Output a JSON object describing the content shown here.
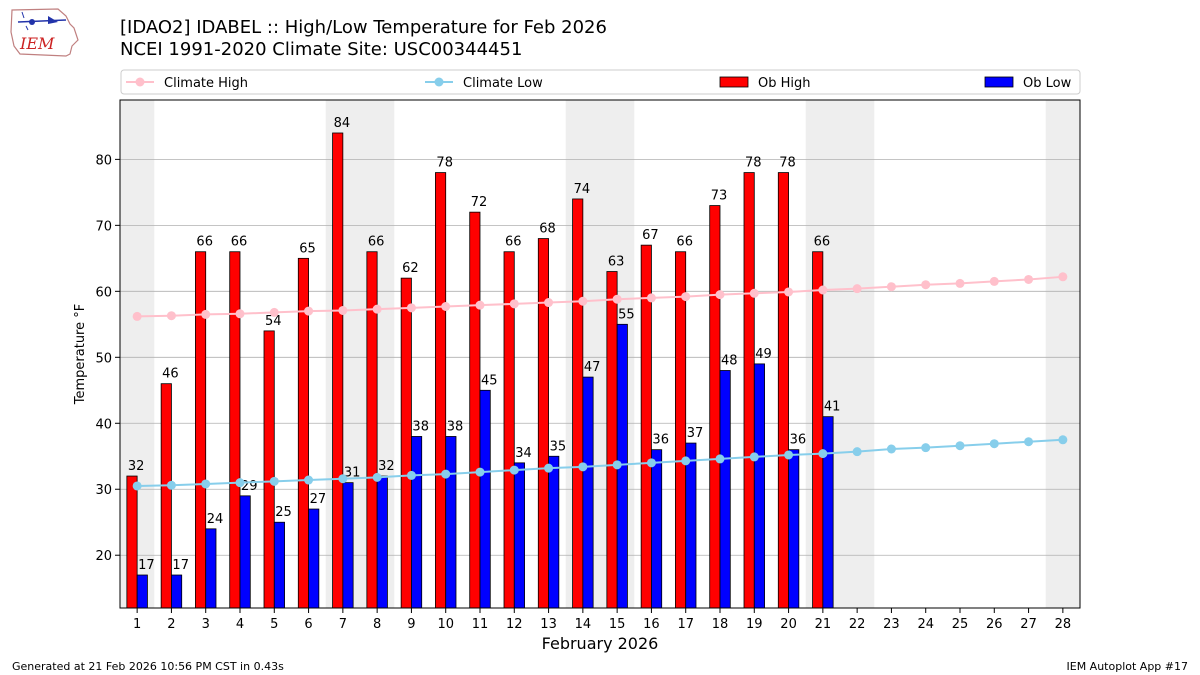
{
  "header": {
    "title_line1": "[IDAO2] IDABEL :: High/Low Temperature for Feb 2026",
    "title_line2": "NCEI 1991-2020 Climate Site: USC00344451",
    "logo_text": "IEM"
  },
  "footer": {
    "generated": "Generated at 21 Feb 2026 10:56 PM CST in 0.43s",
    "app": "IEM Autoplot App #17"
  },
  "colors": {
    "ob_high": "#ff0000",
    "ob_low": "#0000ff",
    "climate_high": "#ffc0cb",
    "climate_low": "#87ceeb",
    "weekend_shade": "#eeeeee",
    "grid": "#b0b0b0"
  },
  "chart_data": {
    "type": "bar",
    "title": "[IDAO2] IDABEL :: High/Low Temperature for Feb 2026",
    "xlabel": "February 2026",
    "ylabel": "Temperature °F",
    "ylim": [
      12,
      89
    ],
    "yticks": [
      20,
      30,
      40,
      50,
      60,
      70,
      80
    ],
    "grid": true,
    "legend_position": "top",
    "categories": [
      "1",
      "2",
      "3",
      "4",
      "5",
      "6",
      "7",
      "8",
      "9",
      "10",
      "11",
      "12",
      "13",
      "14",
      "15",
      "16",
      "17",
      "18",
      "19",
      "20",
      "21",
      "22",
      "23",
      "24",
      "25",
      "26",
      "27",
      "28"
    ],
    "weekend_days": [
      1,
      7,
      8,
      14,
      15,
      21,
      22,
      28
    ],
    "series": [
      {
        "name": "Ob High",
        "kind": "bar",
        "values": [
          32,
          46,
          66,
          66,
          54,
          65,
          84,
          66,
          62,
          78,
          72,
          66,
          68,
          74,
          63,
          67,
          66,
          73,
          78,
          78,
          66,
          null,
          null,
          null,
          null,
          null,
          null,
          null
        ]
      },
      {
        "name": "Ob Low",
        "kind": "bar",
        "values": [
          17,
          17,
          24,
          29,
          25,
          27,
          31,
          32,
          38,
          38,
          45,
          34,
          35,
          47,
          55,
          36,
          37,
          48,
          49,
          36,
          41,
          null,
          null,
          null,
          null,
          null,
          null,
          null
        ]
      },
      {
        "name": "Climate High",
        "kind": "line",
        "values": [
          56.2,
          56.3,
          56.5,
          56.6,
          56.8,
          57.0,
          57.1,
          57.3,
          57.5,
          57.7,
          57.9,
          58.1,
          58.3,
          58.5,
          58.8,
          59.0,
          59.2,
          59.5,
          59.7,
          59.9,
          60.2,
          60.4,
          60.7,
          61.0,
          61.2,
          61.5,
          61.8,
          62.2
        ]
      },
      {
        "name": "Climate Low",
        "kind": "line",
        "values": [
          30.5,
          30.6,
          30.8,
          31.0,
          31.2,
          31.4,
          31.6,
          31.8,
          32.1,
          32.3,
          32.6,
          32.9,
          33.2,
          33.4,
          33.7,
          34.0,
          34.3,
          34.6,
          34.9,
          35.2,
          35.4,
          35.7,
          36.1,
          36.3,
          36.6,
          36.9,
          37.2,
          37.5
        ]
      }
    ]
  }
}
